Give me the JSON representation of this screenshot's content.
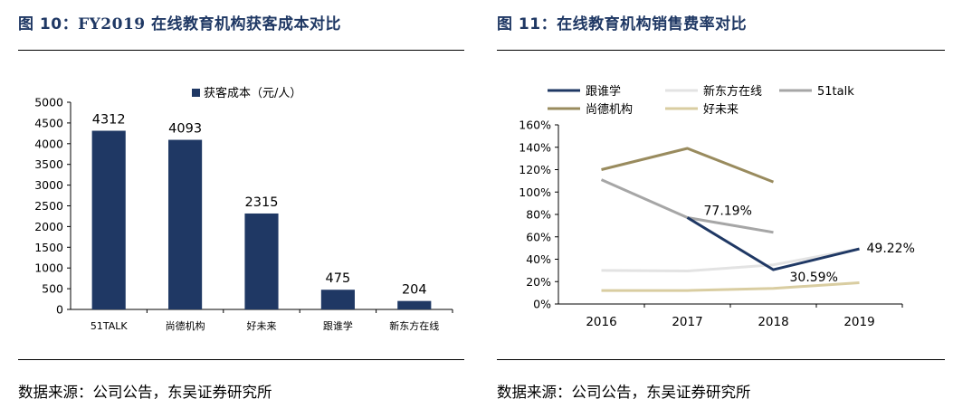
{
  "figures": [
    {
      "title_prefix": "图 10：",
      "title_latin": "FY2019",
      "title_rest": " 在线教育机构获客成本对比",
      "source": "数据来源：公司公告，东吴证券研究所"
    },
    {
      "title_prefix": "图 11：",
      "title_latin": "",
      "title_rest": "在线教育机构销售费率对比",
      "source": "数据来源：公司公告，东吴证券研究所"
    }
  ],
  "chart_data": [
    {
      "type": "bar",
      "categories": [
        "51TALK",
        "尚德机构",
        "好未来",
        "跟谁学",
        "新东方在线"
      ],
      "series": [
        {
          "name": "获客成本（元/人）",
          "values": [
            4312,
            4093,
            2315,
            475,
            204
          ]
        }
      ],
      "data_labels": [
        "4312",
        "4093",
        "2315",
        "475",
        "204"
      ],
      "ylim": [
        0,
        5000
      ],
      "yticks": [
        "0",
        "500",
        "1000",
        "1500",
        "2000",
        "2500",
        "3000",
        "3500",
        "4000",
        "4500",
        "5000"
      ],
      "grid": false,
      "legend": "top",
      "color": "#1f3864"
    },
    {
      "type": "line",
      "x": [
        "2016",
        "2017",
        "2018",
        "2019"
      ],
      "ylim": [
        0,
        160
      ],
      "yticks": [
        "0%",
        "20%",
        "40%",
        "60%",
        "80%",
        "100%",
        "120%",
        "140%",
        "160%"
      ],
      "grid": false,
      "legend": "top",
      "series": [
        {
          "name": "跟谁学",
          "color": "#1f3864",
          "values": [
            null,
            77.19,
            30.59,
            49.22
          ]
        },
        {
          "name": "新东方在线",
          "color": "#e3e3e3",
          "values": [
            30,
            29.5,
            35,
            49.22
          ]
        },
        {
          "name": "51talk",
          "color": "#a6a6a6",
          "values": [
            111,
            77.19,
            64,
            null
          ]
        },
        {
          "name": "尚德机构",
          "color": "#998b5e",
          "values": [
            120,
            139,
            109,
            null
          ]
        },
        {
          "name": "好未来",
          "color": "#d9cda1",
          "values": [
            12,
            12,
            14,
            19
          ]
        }
      ],
      "annotations": [
        {
          "text": "77.19%",
          "x": "2017",
          "y": 77.19
        },
        {
          "text": "30.59%",
          "x": "2018",
          "y": 30.59
        },
        {
          "text": "49.22%",
          "x": "2019",
          "y": 49.22
        }
      ]
    }
  ]
}
